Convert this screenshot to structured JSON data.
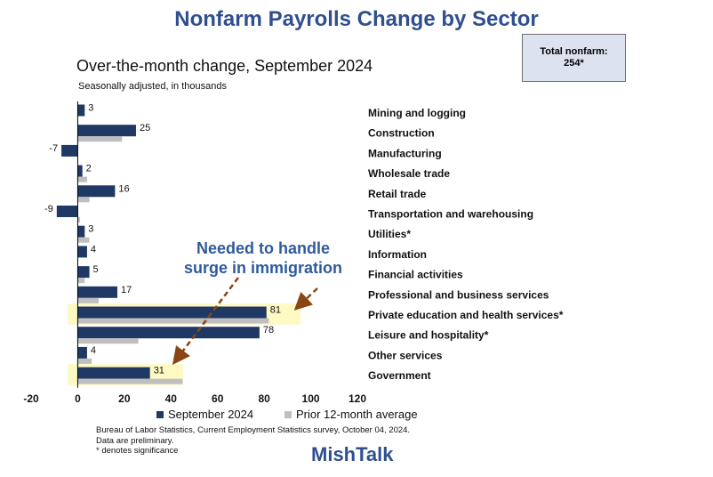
{
  "title": "Nonfarm Payrolls Change by Sector",
  "total_box": {
    "line1": "Total nonfarm:",
    "line2": "254*"
  },
  "brand": "MishTalk",
  "annotation": {
    "line1": "Needed to handle",
    "line2": "surge in immigration"
  },
  "source": {
    "line1": "Bureau of Labor Statistics, Current Employment Statistics survey, October 04, 2024.",
    "line2": "Data are preliminary.",
    "line3": "* denotes significance"
  },
  "colors": {
    "current": "#1f3864",
    "prior": "#bfbfbf",
    "highlight": "#fff9c4",
    "arrow": "#8b4513",
    "title": "#2f4f8f"
  },
  "chart_data": {
    "type": "bar",
    "orientation": "horizontal",
    "title": "Over-the-month change, September 2024",
    "subtitle": "Seasonally adjusted, in thousands",
    "categories": [
      "Mining and logging",
      "Construction",
      "Manufacturing",
      "Wholesale trade",
      "Retail trade",
      "Transportation and warehousing",
      "Utilities*",
      "Information",
      "Financial activities",
      "Professional and business services",
      "Private education and health services*",
      "Leisure and hospitality*",
      "Other services",
      "Government"
    ],
    "series": [
      {
        "name": "September 2024",
        "values": [
          3,
          25,
          -7,
          2,
          16,
          -9,
          3,
          4,
          5,
          17,
          81,
          78,
          4,
          31
        ]
      },
      {
        "name": "Prior 12-month average",
        "values": [
          0,
          19,
          0,
          4,
          5,
          1,
          5,
          0,
          3,
          9,
          82,
          26,
          6,
          45
        ]
      }
    ],
    "value_labels": [
      "3",
      "25",
      "-7",
      "2",
      "16",
      "-9",
      "3",
      "4",
      "5",
      "17",
      "81",
      "78",
      "4",
      "31"
    ],
    "highlighted_categories": [
      "Private education and health services*",
      "Government"
    ],
    "xlim": [
      -20,
      120
    ],
    "xticks": [
      "-20",
      "0",
      "20",
      "40",
      "60",
      "80",
      "100",
      "120"
    ],
    "legend_position": "bottom"
  }
}
